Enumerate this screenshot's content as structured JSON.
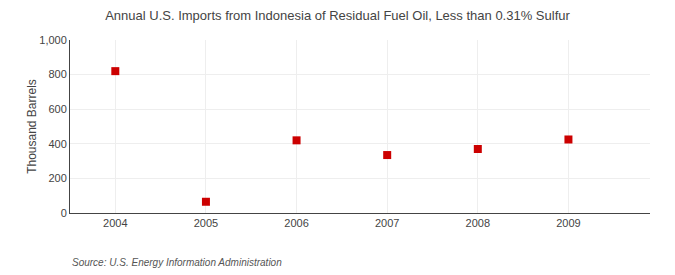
{
  "chart_data": {
    "type": "scatter",
    "title": "Annual U.S. Imports from Indonesia of Residual Fuel Oil, Less than 0.31% Sulfur",
    "y_label": "Thousand Barrels",
    "annotations": [
      "Source: U.S. Energy Information Administration"
    ],
    "x": [
      2004,
      2005,
      2006,
      2007,
      2008,
      2009
    ],
    "values": [
      820,
      65,
      420,
      335,
      370,
      425
    ],
    "color": "#cc0000",
    "marker": "square",
    "xlim": [
      2003.5,
      2009.9
    ],
    "xticks": [
      2004,
      2005,
      2006,
      2007,
      2008,
      2009
    ],
    "ylim": [
      0,
      1000
    ],
    "yticks": [
      0,
      200,
      400,
      600,
      800,
      {
        "value": 1000,
        "label": "1,000"
      }
    ],
    "grid": true
  }
}
